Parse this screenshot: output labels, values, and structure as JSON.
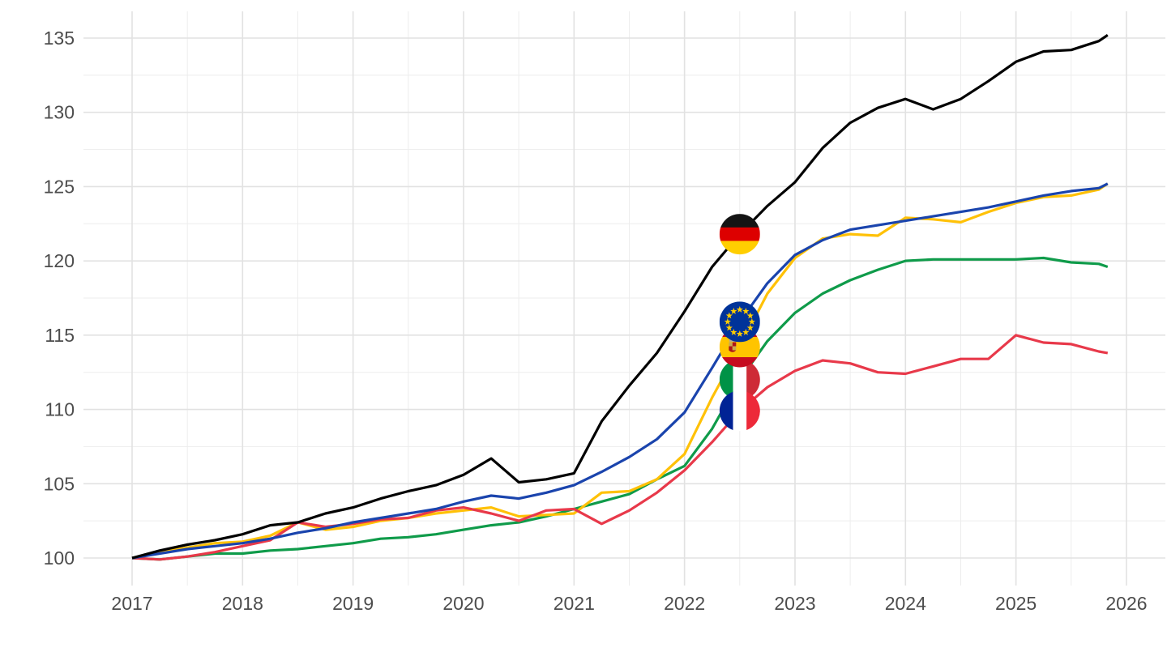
{
  "page": {
    "background_color": "#ffffff",
    "title": ""
  },
  "chart_data": {
    "type": "line",
    "title": "",
    "xlabel": "",
    "ylabel": "",
    "grid": true,
    "legend_position": "none",
    "axis_text_color": "#4d4d4d",
    "grid_major_color": "#e2e2e2",
    "grid_minor_color": "#ededed",
    "x_tick_labels": [
      "2017",
      "2018",
      "2019",
      "2020",
      "2021",
      "2022",
      "2023",
      "2024",
      "2025",
      "2026"
    ],
    "y_tick_labels": [
      "100",
      "105",
      "110",
      "115",
      "120",
      "125",
      "130",
      "135"
    ],
    "x_ticks": [
      2017,
      2018,
      2019,
      2020,
      2021,
      2022,
      2023,
      2024,
      2025,
      2026
    ],
    "y_ticks": [
      100,
      105,
      110,
      115,
      120,
      125,
      130,
      135
    ],
    "xlim": [
      2016.56,
      2026.34
    ],
    "ylim": [
      98.2,
      136.9
    ],
    "x": [
      2017,
      2017.25,
      2017.5,
      2017.75,
      2018,
      2018.25,
      2018.5,
      2018.75,
      2019,
      2019.25,
      2019.5,
      2019.75,
      2020,
      2020.25,
      2020.5,
      2020.75,
      2021,
      2021.25,
      2021.5,
      2021.75,
      2022,
      2022.25,
      2022.5,
      2022.75,
      2023,
      2023.25,
      2023.5,
      2023.75,
      2024,
      2024.25,
      2024.5,
      2024.75,
      2025,
      2025.25,
      2025.5,
      2025.75,
      2025.83
    ],
    "series": [
      {
        "name": "Italy",
        "flag": "it",
        "icon": "italy-flag-icon",
        "color": "#0f9b4a",
        "values": [
          100,
          99.9,
          100.1,
          100.3,
          100.3,
          100.5,
          100.6,
          100.8,
          101,
          101.3,
          101.4,
          101.6,
          101.9,
          102.2,
          102.4,
          102.8,
          103.3,
          103.8,
          104.3,
          105.3,
          106.2,
          108.7,
          112,
          114.6,
          116.5,
          117.8,
          118.7,
          119.4,
          120,
          120.1,
          120.1,
          120.1,
          120.1,
          120.2,
          119.9,
          119.8,
          119.6
        ]
      },
      {
        "name": "Spain",
        "flag": "es",
        "icon": "spain-flag-icon",
        "color": "#ffc107",
        "values": [
          100,
          100.4,
          100.7,
          101,
          101.1,
          101.5,
          102.4,
          101.9,
          102.1,
          102.5,
          102.7,
          103,
          103.2,
          103.4,
          102.8,
          102.9,
          103,
          104.4,
          104.5,
          105.3,
          107,
          110.8,
          114.2,
          117.8,
          120.2,
          121.5,
          121.8,
          121.7,
          122.9,
          122.8,
          122.6,
          123.3,
          123.9,
          124.3,
          124.4,
          124.8,
          125.2
        ]
      },
      {
        "name": "France",
        "flag": "fr",
        "icon": "france-flag-icon",
        "color": "#e8394a",
        "values": [
          100,
          99.9,
          100.1,
          100.4,
          100.8,
          101.2,
          102.4,
          102.1,
          102.3,
          102.6,
          102.7,
          103.2,
          103.4,
          103,
          102.5,
          103.2,
          103.3,
          102.3,
          103.2,
          104.4,
          105.9,
          107.8,
          109.9,
          111.5,
          112.6,
          113.3,
          113.1,
          112.5,
          112.4,
          112.9,
          113.4,
          113.4,
          115,
          114.5,
          114.4,
          113.9,
          113.8
        ]
      },
      {
        "name": "European Union",
        "flag": "eu",
        "icon": "eu-flag-icon",
        "color": "#1a44ad",
        "values": [
          100,
          100.3,
          100.6,
          100.8,
          101,
          101.3,
          101.7,
          102,
          102.4,
          102.7,
          103,
          103.3,
          103.8,
          104.2,
          104,
          104.4,
          104.9,
          105.8,
          106.8,
          108,
          109.8,
          112.8,
          115.9,
          118.5,
          120.4,
          121.4,
          122.1,
          122.4,
          122.7,
          123,
          123.3,
          123.6,
          124,
          124.4,
          124.7,
          124.9,
          125.2
        ]
      },
      {
        "name": "Germany",
        "flag": "de",
        "icon": "germany-flag-icon",
        "color": "#000000",
        "values": [
          100,
          100.5,
          100.9,
          101.2,
          101.6,
          102.2,
          102.4,
          103,
          103.4,
          104,
          104.5,
          104.9,
          105.6,
          106.7,
          105.1,
          105.3,
          105.7,
          109.2,
          111.6,
          113.8,
          116.6,
          119.6,
          121.8,
          123.7,
          125.3,
          127.6,
          129.3,
          130.3,
          130.9,
          130.2,
          130.9,
          132.1,
          133.4,
          134.1,
          134.2,
          134.8,
          135.2
        ]
      }
    ],
    "flag_markers": {
      "x": 2022.5,
      "radius": 25,
      "z_order": [
        "it",
        "fr",
        "es",
        "eu",
        "de"
      ],
      "values": {
        "de": 121.8,
        "eu": 115.9,
        "es": 114.2,
        "it": 112.0,
        "fr": 109.9
      }
    },
    "flag_colors": {
      "de": [
        "#141414",
        "#dd0000",
        "#ffce00"
      ],
      "eu": {
        "field": "#003399",
        "stars": "#ffcc00"
      },
      "es": {
        "bands": [
          "#c60b1e",
          "#ffc400",
          "#c60b1e"
        ],
        "crest_dark": "#ad1519",
        "crest_light": "#c8a951",
        "crown": "#b8a88a"
      },
      "it": [
        "#009246",
        "#ffffff",
        "#ce2b37"
      ],
      "fr": [
        "#002395",
        "#ffffff",
        "#ed2939"
      ]
    }
  }
}
